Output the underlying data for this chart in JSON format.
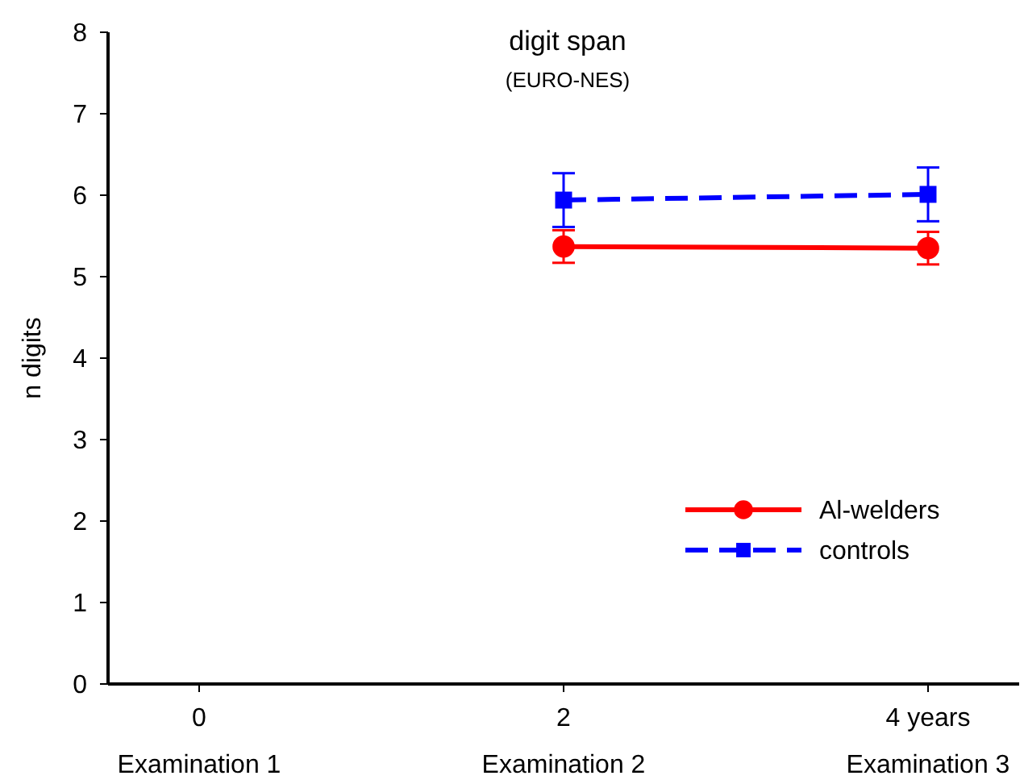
{
  "chart_data": {
    "type": "line",
    "title": "digit span",
    "subtitle": "(EURO-NES)",
    "ylabel": "n digits",
    "categories": [
      "0\nExamination 1",
      "2\nExamination 2",
      "4 years\nExamination 3"
    ],
    "ylim": [
      0,
      8
    ],
    "yticks": [
      0,
      1,
      2,
      3,
      4,
      5,
      6,
      7,
      8
    ],
    "grid": false,
    "legend": "bottom right",
    "series": [
      {
        "name": "Al-welders",
        "color": "#ff0000",
        "values": [
          null,
          5.37,
          5.35
        ],
        "errors": [
          null,
          0.2,
          0.2
        ],
        "marker": "circle",
        "line_style": "solid"
      },
      {
        "name": "controls",
        "color": "#0000ff",
        "values": [
          null,
          5.94,
          6.01
        ],
        "errors": [
          null,
          0.33,
          0.33
        ],
        "marker": "square",
        "line_style": "dashed"
      }
    ]
  }
}
